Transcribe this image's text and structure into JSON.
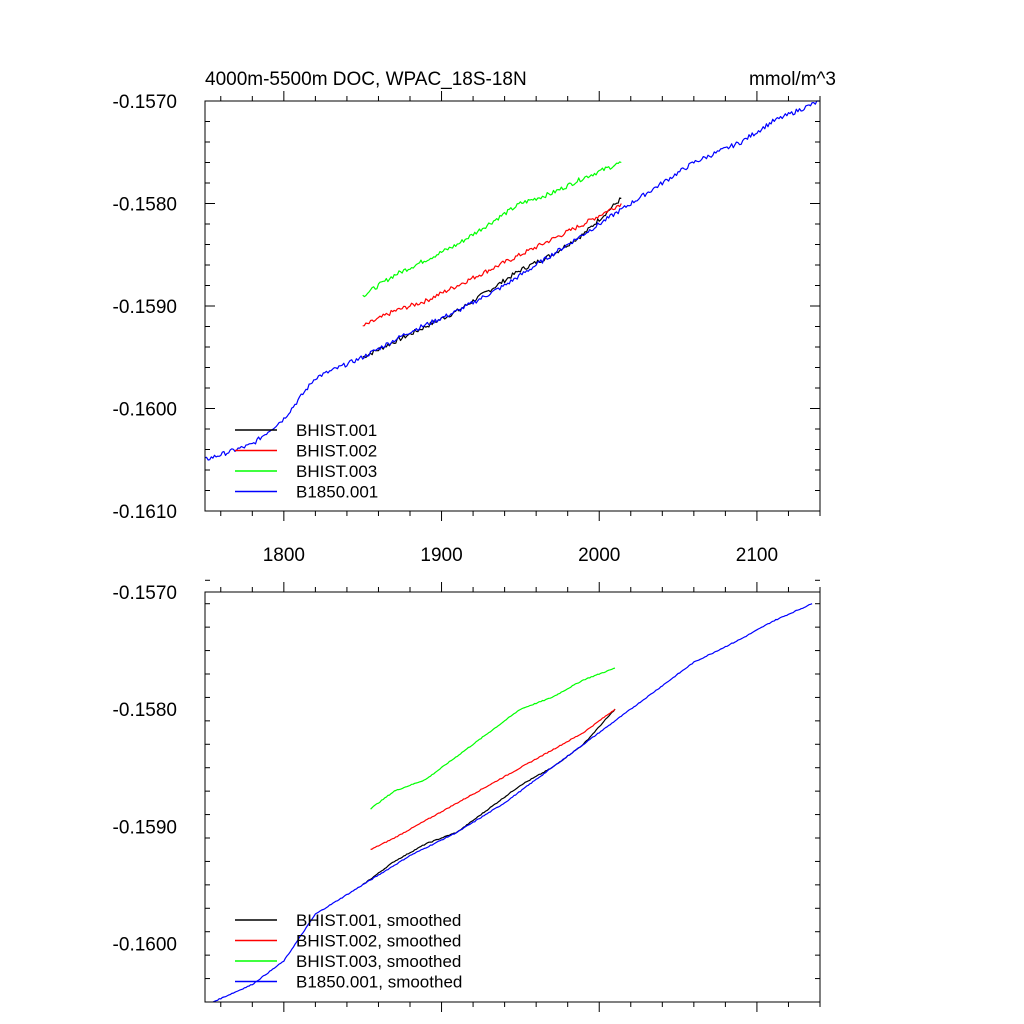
{
  "chart_data": [
    {
      "type": "line",
      "title": "4000m-5500m DOC, WPAC_18S-18N",
      "units": "mmol/m^3",
      "xlim": [
        1750,
        2140
      ],
      "ylim": [
        -0.161,
        -0.157
      ],
      "xticks": [
        1800,
        1900,
        2000,
        2100
      ],
      "xtick_labels": [
        "1800",
        "1900",
        "2000",
        "2100"
      ],
      "yticks": [
        -0.157,
        -0.158,
        -0.159,
        -0.16,
        -0.161
      ],
      "ytick_labels": [
        "-0.1570",
        "-0.1580",
        "-0.1590",
        "-0.1600",
        "-0.1610"
      ],
      "legend_position": "bottom-left",
      "series": [
        {
          "name": "BHIST.001",
          "color": "#000000",
          "x": [
            1850,
            1870,
            1890,
            1910,
            1930,
            1950,
            1970,
            1990,
            2014
          ],
          "y": [
            -0.1595,
            -0.15935,
            -0.1592,
            -0.15905,
            -0.15885,
            -0.15865,
            -0.1585,
            -0.1583,
            -0.15795
          ]
        },
        {
          "name": "BHIST.002",
          "color": "#ff0000",
          "x": [
            1850,
            1870,
            1890,
            1910,
            1930,
            1950,
            1970,
            1990,
            2014
          ],
          "y": [
            -0.1592,
            -0.15905,
            -0.15895,
            -0.1588,
            -0.15865,
            -0.1585,
            -0.15835,
            -0.1582,
            -0.158
          ]
        },
        {
          "name": "BHIST.003",
          "color": "#00ff00",
          "x": [
            1850,
            1870,
            1890,
            1910,
            1930,
            1950,
            1970,
            1990,
            2014
          ],
          "y": [
            -0.1589,
            -0.1587,
            -0.15855,
            -0.1584,
            -0.1582,
            -0.158,
            -0.1579,
            -0.15775,
            -0.1576
          ]
        },
        {
          "name": "B1850.001",
          "color": "#0000ff",
          "x": [
            1750,
            1780,
            1800,
            1820,
            1850,
            1880,
            1910,
            1940,
            1970,
            2000,
            2030,
            2060,
            2090,
            2110,
            2140
          ],
          "y": [
            -0.1605,
            -0.16035,
            -0.1601,
            -0.1597,
            -0.1595,
            -0.15925,
            -0.15905,
            -0.1588,
            -0.1585,
            -0.1582,
            -0.1579,
            -0.1576,
            -0.1574,
            -0.1572,
            -0.157
          ]
        }
      ]
    },
    {
      "type": "line",
      "xlim": [
        1750,
        2140
      ],
      "ylim": [
        -0.1605,
        -0.157
      ],
      "xticks": [
        1800,
        1900,
        2000,
        2100
      ],
      "yticks": [
        -0.157,
        -0.158,
        -0.159,
        -0.16
      ],
      "ytick_labels": [
        "-0.1570",
        "-0.1580",
        "-0.1590",
        "-0.1600"
      ],
      "legend_position": "bottom-left",
      "series": [
        {
          "name": "BHIST.001, smoothed",
          "color": "#000000",
          "x": [
            1850,
            1870,
            1890,
            1910,
            1930,
            1950,
            1970,
            1990,
            2010
          ],
          "y": [
            -0.1595,
            -0.1593,
            -0.15915,
            -0.15905,
            -0.15885,
            -0.15865,
            -0.1585,
            -0.1583,
            -0.158
          ]
        },
        {
          "name": "BHIST.002, smoothed",
          "color": "#ff0000",
          "x": [
            1855,
            1870,
            1890,
            1910,
            1930,
            1950,
            1970,
            1990,
            2010
          ],
          "y": [
            -0.1592,
            -0.1591,
            -0.15895,
            -0.1588,
            -0.15865,
            -0.1585,
            -0.15835,
            -0.1582,
            -0.158
          ]
        },
        {
          "name": "BHIST.003, smoothed",
          "color": "#00ff00",
          "x": [
            1855,
            1870,
            1890,
            1910,
            1930,
            1950,
            1970,
            1990,
            2010
          ],
          "y": [
            -0.15885,
            -0.1587,
            -0.1586,
            -0.1584,
            -0.1582,
            -0.158,
            -0.1579,
            -0.15775,
            -0.15765
          ]
        },
        {
          "name": "B1850.001, smoothed",
          "color": "#0000ff",
          "x": [
            1755,
            1780,
            1800,
            1820,
            1850,
            1880,
            1910,
            1940,
            1970,
            2000,
            2030,
            2060,
            2090,
            2110,
            2135
          ],
          "y": [
            -0.1605,
            -0.16035,
            -0.16015,
            -0.15975,
            -0.1595,
            -0.15925,
            -0.15905,
            -0.1588,
            -0.1585,
            -0.1582,
            -0.1579,
            -0.1576,
            -0.1574,
            -0.15725,
            -0.1571
          ]
        }
      ]
    }
  ]
}
